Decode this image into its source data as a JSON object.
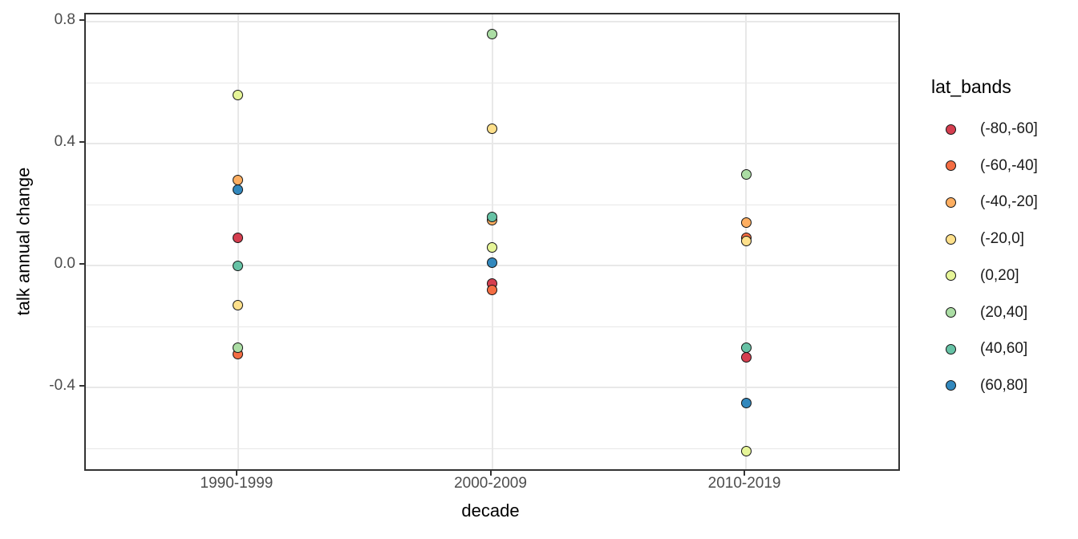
{
  "figure": {
    "background": "#ffffff",
    "panel_border_color": "#333333",
    "grid_color": "#e8e8e8",
    "point_outline_color": "#141414"
  },
  "chart_data": {
    "type": "scatter",
    "title": "",
    "xlabel": "decade",
    "ylabel": "talk annual change",
    "categories": [
      "1990-1999",
      "2000-2009",
      "2010-2019"
    ],
    "series": [
      {
        "name": "(-80,-60]",
        "color": "#d53e4f",
        "values": [
          0.09,
          -0.06,
          -0.3
        ]
      },
      {
        "name": "(-60,-40]",
        "color": "#f46d43",
        "values": [
          -0.29,
          -0.08,
          0.09
        ]
      },
      {
        "name": "(-40,-20]",
        "color": "#fdae61",
        "values": [
          0.28,
          0.15,
          0.14
        ]
      },
      {
        "name": "(-20,0]",
        "color": "#fee08b",
        "values": [
          -0.13,
          0.45,
          0.08
        ]
      },
      {
        "name": "(0,20]",
        "color": "#e6f598",
        "values": [
          0.56,
          0.06,
          -0.61
        ]
      },
      {
        "name": "(20,40]",
        "color": "#abdda4",
        "values": [
          -0.27,
          0.76,
          0.3
        ]
      },
      {
        "name": "(40,60]",
        "color": "#66c2a5",
        "values": [
          0.0,
          0.16,
          -0.27
        ]
      },
      {
        "name": "(60,80]",
        "color": "#3288bd",
        "values": [
          0.25,
          0.01,
          -0.45
        ]
      }
    ],
    "y_ticks": [
      0.8,
      0.4,
      0.0,
      -0.4
    ],
    "y_tick_labels": [
      "0.8",
      "0.4",
      "0.0",
      "-0.4"
    ],
    "y_minor_gridlines": [
      0.6,
      0.2,
      -0.2,
      -0.6
    ],
    "ylim": [
      -0.6684,
      0.8237
    ],
    "grid": true,
    "legend": {
      "title": "lat_bands",
      "position": "right"
    }
  }
}
